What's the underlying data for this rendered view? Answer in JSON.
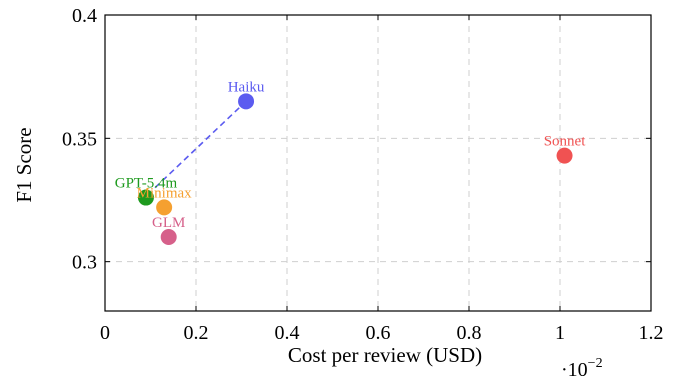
{
  "chart_data": {
    "type": "scatter",
    "title": "",
    "xlabel": "Cost per review (USD)",
    "ylabel": "F1 Score",
    "x_scale_label": "·10",
    "x_scale_exponent": "−2",
    "xlim": [
      0,
      1.2
    ],
    "ylim": [
      0.28,
      0.4
    ],
    "x_ticks": [
      0,
      0.2,
      0.4,
      0.6,
      0.8,
      1,
      1.2
    ],
    "x_tick_labels": [
      "0",
      "0.2",
      "0.4",
      "0.6",
      "0.8",
      "1",
      "1.2"
    ],
    "y_ticks": [
      0.3,
      0.35,
      0.4
    ],
    "y_tick_labels": [
      "0.3",
      "0.35",
      "0.4"
    ],
    "grid": true,
    "points": [
      {
        "label": "Haiku",
        "x": 0.31,
        "y": 0.365,
        "color": "#5b5bf0"
      },
      {
        "label": "Sonnet",
        "x": 1.01,
        "y": 0.343,
        "color": "#f05252"
      },
      {
        "label": "GPT-5.4m",
        "x": 0.09,
        "y": 0.326,
        "color": "#1e9a1e"
      },
      {
        "label": "Minimax",
        "x": 0.13,
        "y": 0.322,
        "color": "#f5a030"
      },
      {
        "label": "GLM",
        "x": 0.14,
        "y": 0.31,
        "color": "#d6608a"
      }
    ],
    "trend_line": {
      "from": [
        0.11,
        0.33
      ],
      "to": [
        0.31,
        0.365
      ],
      "color": "#5b5bf0",
      "style": "dashed"
    }
  }
}
